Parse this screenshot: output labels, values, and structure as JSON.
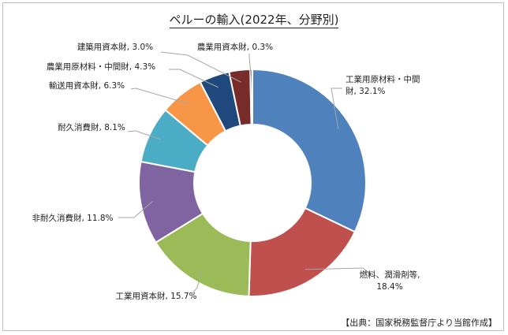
{
  "title": "ペルーの輸入(2022年、分野別)",
  "source": "【出典：国家税務監督庁より当館作成】",
  "chart_data": {
    "type": "pie",
    "variant": "donut",
    "start_angle_deg": 0,
    "direction": "clockwise",
    "slices": [
      {
        "label": "工業用原材料・中間財",
        "value": 32.1,
        "display": "工業用原材料・中間財, 32.1%",
        "color": "#4F81BD"
      },
      {
        "label": "燃料、潤滑剤等",
        "value": 18.4,
        "display": "燃料、潤滑剤等, 18.4%",
        "color": "#C0504D"
      },
      {
        "label": "工業用資本財",
        "value": 15.7,
        "display": "工業用資本財, 15.7%",
        "color": "#9BBB59"
      },
      {
        "label": "非耐久消費財",
        "value": 11.8,
        "display": "非耐久消費財, 11.8%",
        "color": "#8064A2"
      },
      {
        "label": "耐久消費財",
        "value": 8.1,
        "display": "耐久消費財, 8.1%",
        "color": "#4BACC6"
      },
      {
        "label": "輸送用資本財",
        "value": 6.3,
        "display": "輸送用資本財, 6.3%",
        "color": "#F79646"
      },
      {
        "label": "農業用原材料・中間財",
        "value": 4.3,
        "display": "農業用原材料・中間財, 4.3%",
        "color": "#1F497D"
      },
      {
        "label": "建築用資本財",
        "value": 3.0,
        "display": "建築用資本財, 3.0%",
        "color": "#772C2A"
      },
      {
        "label": "農業用資本財",
        "value": 0.3,
        "display": "農業用資本財, 0.3%",
        "color": "#4F81BD"
      }
    ]
  }
}
